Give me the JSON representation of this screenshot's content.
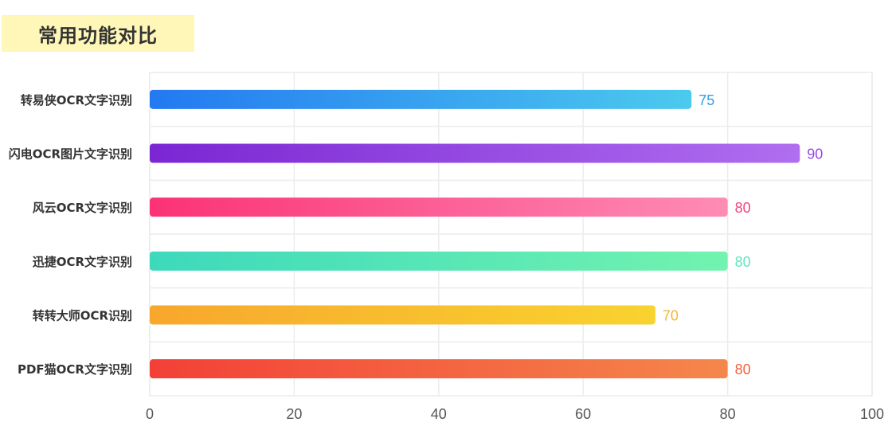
{
  "title": "常用功能对比",
  "chart_data": {
    "type": "bar",
    "orientation": "horizontal",
    "title": "常用功能对比",
    "categories": [
      "转易侠OCR文字识别",
      "闪电OCR图片文字识别",
      "风云OCR文字识别",
      "迅捷OCR文字识别",
      "转转大师OCR识别",
      "PDF猫OCR文字识别"
    ],
    "values": [
      75,
      90,
      80,
      80,
      70,
      80
    ],
    "xlim": [
      0,
      100
    ],
    "x_ticks": [
      "0",
      "20",
      "40",
      "60",
      "80",
      "100"
    ],
    "grid": true,
    "xlabel": "",
    "ylabel": "",
    "bar_gradients": [
      [
        "#2379f1",
        "#4ccaee"
      ],
      [
        "#7b26d3",
        "#b06ef0"
      ],
      [
        "#fb3276",
        "#fe8cb5"
      ],
      [
        "#3dd9bc",
        "#72f3af"
      ],
      [
        "#f8a72d",
        "#f9d32f"
      ],
      [
        "#f34037",
        "#f5874b"
      ]
    ],
    "value_label_colors": [
      "#2d9fe6",
      "#9b48e6",
      "#f0437f",
      "#5ee6be",
      "#f3b63a",
      "#f25f3c"
    ]
  }
}
